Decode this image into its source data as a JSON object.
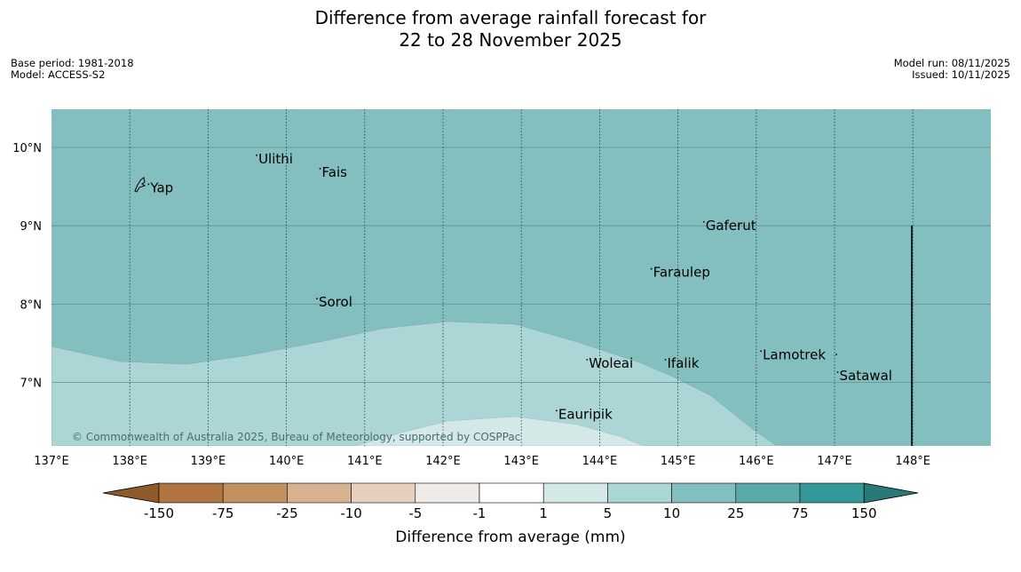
{
  "title": {
    "line1": "Difference from average rainfall forecast for",
    "line2": "22 to 28 November 2025"
  },
  "meta": {
    "base_period": "Base period: 1981-2018",
    "model": "Model: ACCESS-S2",
    "model_run": "Model run: 08/11/2025",
    "issued": "Issued: 10/11/2025"
  },
  "map": {
    "lat_labels": [
      "10°N",
      "9°N",
      "8°N",
      "7°N"
    ],
    "lon_labels": [
      "137°E",
      "138°E",
      "139°E",
      "140°E",
      "141°E",
      "142°E",
      "143°E",
      "144°E",
      "145°E",
      "146°E",
      "147°E",
      "148°E"
    ],
    "places": [
      {
        "name": "Yap",
        "lon": 138.24,
        "lat": 9.53
      },
      {
        "name": "Ulithi",
        "lon": 139.62,
        "lat": 9.9
      },
      {
        "name": "Fais",
        "lon": 140.43,
        "lat": 9.73
      },
      {
        "name": "Gaferut",
        "lon": 145.33,
        "lat": 9.05
      },
      {
        "name": "Faraulep",
        "lon": 144.66,
        "lat": 8.45
      },
      {
        "name": "Sorol",
        "lon": 140.39,
        "lat": 8.07
      },
      {
        "name": "Lamotrek",
        "lon": 146.06,
        "lat": 7.4
      },
      {
        "name": "Satawal",
        "lon": 147.04,
        "lat": 7.13
      },
      {
        "name": "Woleai",
        "lon": 143.84,
        "lat": 7.29
      },
      {
        "name": "Ifalik",
        "lon": 144.84,
        "lat": 7.29
      },
      {
        "name": "Eauripik",
        "lon": 143.45,
        "lat": 6.64
      }
    ],
    "colors": {
      "range_10_25": "#84bfbf",
      "range_5_10": "#acd5d5",
      "range_1_5": "#d4e8e8"
    },
    "copyright": "© Commonwealth of Australia 2025, Bureau of Meteorology, supported by COSPPac"
  },
  "colorbar": {
    "title": "Difference from average (mm)",
    "tick_labels": [
      "-150",
      "-75",
      "-25",
      "-10",
      "-5",
      "-1",
      "1",
      "5",
      "10",
      "25",
      "75",
      "150"
    ],
    "segment_colors": [
      "#8e5a2b",
      "#b07440",
      "#c29060",
      "#d6b290",
      "#e5d0bd",
      "#efebe7",
      "#ffffff",
      "#d4e8e8",
      "#acd5d5",
      "#84bfbf",
      "#5aaaaa",
      "#359898",
      "#2a7878"
    ]
  }
}
